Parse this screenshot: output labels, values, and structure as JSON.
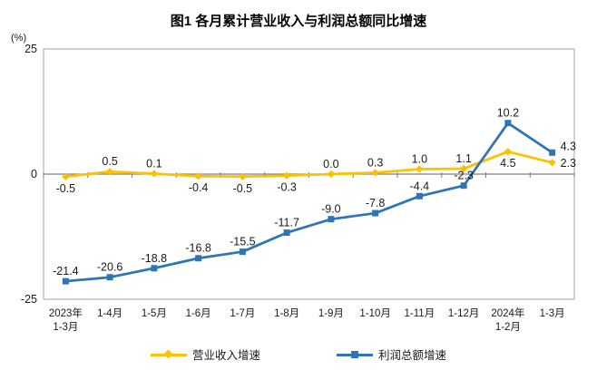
{
  "title": "图1 各月累计营业收入与利润总额同比增速",
  "y_axis": {
    "unit": "(%)",
    "ticks": [
      25,
      0,
      -25
    ]
  },
  "chart_data": {
    "type": "line",
    "categories": [
      [
        "2023年",
        "1-3月"
      ],
      [
        "1-4月"
      ],
      [
        "1-5月"
      ],
      [
        "1-6月"
      ],
      [
        "1-7月"
      ],
      [
        "1-8月"
      ],
      [
        "1-9月"
      ],
      [
        "1-10月"
      ],
      [
        "1-11月"
      ],
      [
        "1-12月"
      ],
      [
        "2024年",
        "1-2月"
      ],
      [
        "1-3月"
      ]
    ],
    "series": [
      {
        "name": "营业收入增速",
        "color": "#FFC000",
        "marker": "diamond",
        "values": [
          -0.5,
          0.5,
          0.1,
          -0.4,
          -0.5,
          -0.3,
          0.0,
          0.3,
          1.0,
          1.1,
          4.5,
          2.3
        ],
        "label_pos": [
          "below",
          "above",
          "above",
          "below",
          "below",
          "below",
          "above",
          "above",
          "above",
          "above",
          "below",
          "right"
        ]
      },
      {
        "name": "利润总额增速",
        "color": "#2E75B6",
        "marker": "square",
        "values": [
          -21.4,
          -20.6,
          -18.8,
          -16.8,
          -15.5,
          -11.7,
          -9.0,
          -7.8,
          -4.4,
          -2.3,
          10.2,
          4.3
        ],
        "label_pos": [
          "above",
          "above",
          "above",
          "above",
          "above",
          "above",
          "above",
          "above",
          "above",
          "above",
          "above",
          "right-above"
        ]
      }
    ],
    "ylim": [
      -25,
      25
    ],
    "grid": false,
    "legend_position": "bottom"
  },
  "legend": {
    "items": [
      {
        "label": "营业收入增速",
        "color": "#FFC000",
        "marker": "diamond"
      },
      {
        "label": "利润总额增速",
        "color": "#2E75B6",
        "marker": "square"
      }
    ]
  }
}
